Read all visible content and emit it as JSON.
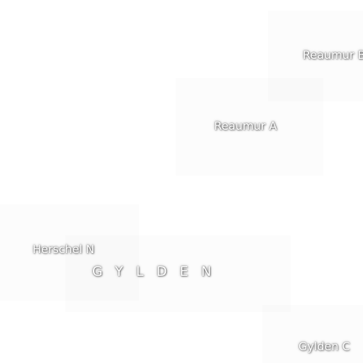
{
  "map": {
    "colors": {
      "background": "#ffffff",
      "label_text": "#ffffff",
      "label_halo": "#555555"
    },
    "labels": {
      "reaumur_b": "Reaumur B",
      "reaumur_a": "Reaumur A",
      "herschel_n": "Herschel N",
      "gylden": "GYLDEN",
      "gylden_c": "Gylden C"
    }
  }
}
